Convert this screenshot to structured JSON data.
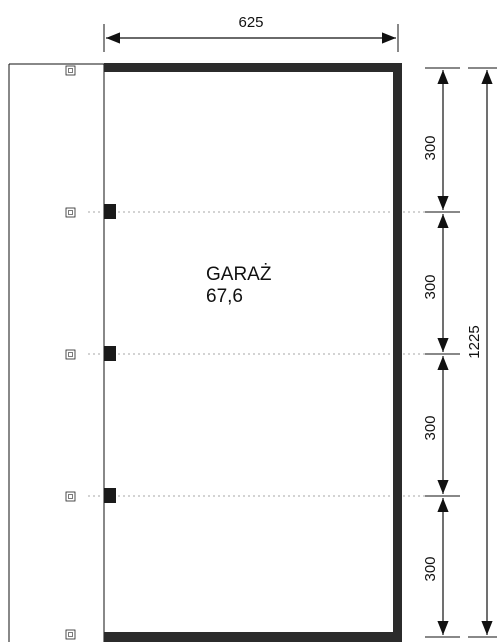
{
  "dimensions": {
    "top_width": "625",
    "total_height": "1225",
    "segments": [
      "300",
      "300",
      "300",
      "300"
    ]
  },
  "room": {
    "name": "GARAŻ",
    "area": "67,6"
  },
  "colors": {
    "wall": "#2b2b2b",
    "line": "#111111",
    "guide": "#9a9a9a"
  }
}
